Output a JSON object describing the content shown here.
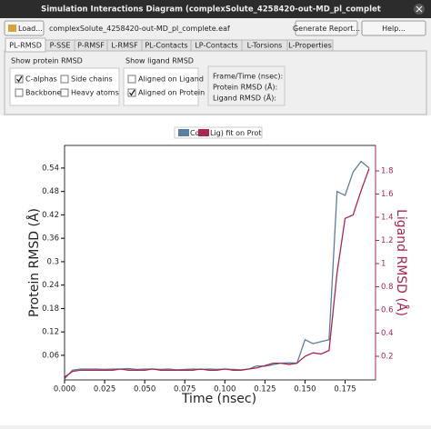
{
  "window": {
    "title": "Simulation Interactions Diagram (complexSolute_4258420-out-MD_pl_complet"
  },
  "toolbar": {
    "load": "Load...",
    "file": "complexSolute_4258420-out-MD_pl_complete.eaf",
    "report": "Generate Report...",
    "help": "Help..."
  },
  "tabs": [
    "PL-RMSD",
    "P-SSE",
    "P-RMSF",
    "L-RMSF",
    "PL-Contacts",
    "LP-Contacts",
    "L-Torsions",
    "L-Properties"
  ],
  "protein_rmsd": {
    "title": "Show protein RMSD",
    "options": [
      {
        "label": "C-alphas",
        "checked": true
      },
      {
        "label": "Side chains",
        "checked": false
      },
      {
        "label": "Backbone",
        "checked": false
      },
      {
        "label": "Heavy atoms",
        "checked": false
      }
    ]
  },
  "ligand_rmsd": {
    "title": "Show ligand RMSD",
    "options": [
      {
        "label": "Aligned on Ligand",
        "checked": false
      },
      {
        "label": "Aligned on Protein",
        "checked": true
      }
    ]
  },
  "info": [
    "Frame/Time (nsec):",
    "Protein RMSD (Å):",
    "Ligand RMSD (Å):"
  ],
  "chart_data": {
    "type": "line",
    "xlabel": "Time (nsec)",
    "ylabel": "Protein RMSD (Å)",
    "y2label": "Ligand RMSD (Å)",
    "x": [
      0,
      0.005,
      0.01,
      0.015,
      0.02,
      0.025,
      0.03,
      0.035,
      0.04,
      0.045,
      0.05,
      0.055,
      0.06,
      0.065,
      0.07,
      0.075,
      0.08,
      0.085,
      0.09,
      0.095,
      0.1,
      0.105,
      0.11,
      0.115,
      0.12,
      0.125,
      0.13,
      0.135,
      0.14,
      0.145,
      0.15,
      0.155,
      0.16,
      0.165,
      0.17,
      0.175,
      0.18,
      0.185,
      0.19
    ],
    "series": [
      {
        "name": "Cα",
        "color": "#5b7fa0",
        "values": [
          0.0,
          0.022,
          0.025,
          0.025,
          0.025,
          0.024,
          0.025,
          0.025,
          0.026,
          0.024,
          0.025,
          0.025,
          0.024,
          0.025,
          0.023,
          0.024,
          0.025,
          0.024,
          0.025,
          0.024,
          0.025,
          0.024,
          0.023,
          0.025,
          0.033,
          0.032,
          0.036,
          0.04,
          0.041,
          0.04,
          0.1,
          0.09,
          0.095,
          0.1,
          0.48,
          0.47,
          0.53,
          0.557,
          0.54
        ]
      },
      {
        "name": "Lig) fit on Prot",
        "color": "#a8284f",
        "axis": "y2",
        "values": [
          0.02,
          0.07,
          0.08,
          0.08,
          0.08,
          0.08,
          0.08,
          0.09,
          0.08,
          0.08,
          0.08,
          0.09,
          0.08,
          0.08,
          0.08,
          0.08,
          0.08,
          0.09,
          0.08,
          0.08,
          0.09,
          0.08,
          0.08,
          0.09,
          0.1,
          0.12,
          0.14,
          0.14,
          0.13,
          0.14,
          0.2,
          0.23,
          0.22,
          0.25,
          0.92,
          1.39,
          1.42,
          1.63,
          1.82
        ]
      }
    ],
    "xlim": [
      0,
      0.194
    ],
    "xticks": [
      {
        "value": 0,
        "label": "0.000"
      },
      0.025,
      {
        "value": 0.05,
        "label": "0.050"
      },
      0.075,
      {
        "value": 0.1,
        "label": "0.100"
      },
      0.125,
      {
        "value": 0.15,
        "label": "0.150"
      },
      0.175
    ],
    "ylim": [
      -0.003,
      0.598
    ],
    "yticks": [
      0.06,
      0.12,
      0.18,
      0.24,
      0.3,
      0.36,
      0.42,
      0.48,
      0.54
    ],
    "y2lim": [
      -0.004,
      2.02
    ],
    "y2ticks": [
      0.2,
      0.4,
      0.6,
      0.8,
      1,
      1.2,
      1.4,
      1.6,
      1.8
    ],
    "grid": false
  }
}
